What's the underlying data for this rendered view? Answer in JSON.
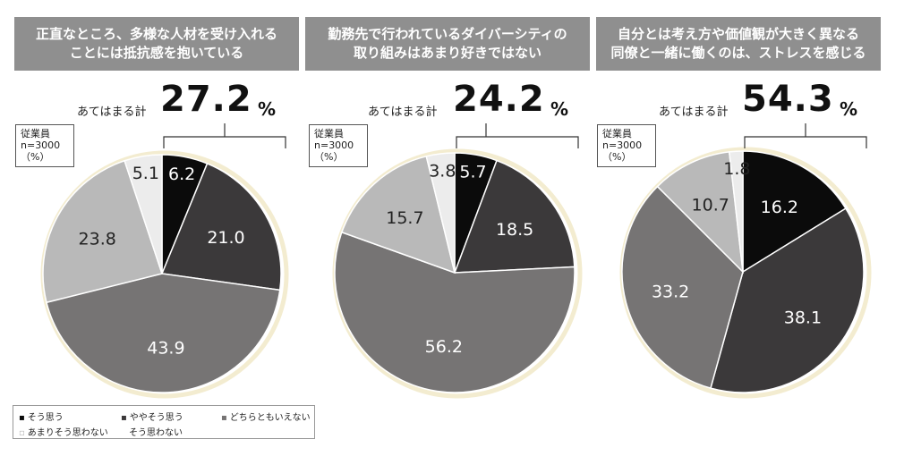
{
  "legend": [
    {
      "label": "そう思う",
      "color": "#0b0b0b"
    },
    {
      "label": "ややそう思う",
      "color": "#3b393a"
    },
    {
      "label": "どちらともいえない",
      "color": "#767474"
    },
    {
      "label": "あまりそう思わない",
      "color": "#b9b9b9"
    },
    {
      "label": "そう思わない",
      "color": "#ececec"
    }
  ],
  "sample": {
    "line1": "従業員",
    "line2": "n=3000",
    "line3": "（%）"
  },
  "chart_data": [
    {
      "type": "pie",
      "title_line1": "正直なところ、多様な人材を受け入れる",
      "title_line2": "ことには抵抗感を抱いている",
      "total_label": "あてはまる計",
      "total_value": "27.2",
      "total_unit": "%",
      "categories": [
        "そう思う",
        "ややそう思う",
        "どちらともいえない",
        "あまりそう思わない",
        "そう思わない"
      ],
      "values": [
        6.2,
        21.0,
        43.9,
        23.8,
        5.1
      ],
      "labels": [
        "6.2",
        "21.0",
        "43.9",
        "23.8",
        "5.1"
      ]
    },
    {
      "type": "pie",
      "title_line1": "勤務先で行われているダイバーシティの",
      "title_line2": "取り組みはあまり好きではない",
      "total_label": "あてはまる計",
      "total_value": "24.2",
      "total_unit": "%",
      "categories": [
        "そう思う",
        "ややそう思う",
        "どちらともいえない",
        "あまりそう思わない",
        "そう思わない"
      ],
      "values": [
        5.7,
        18.5,
        56.2,
        15.7,
        3.8
      ],
      "labels": [
        "5.7",
        "18.5",
        "56.2",
        "15.7",
        "3.8"
      ]
    },
    {
      "type": "pie",
      "title_line1": "自分とは考え方や価値観が大きく異なる",
      "title_line2": "同僚と一緒に働くのは、ストレスを感じる",
      "total_label": "あてはまる計",
      "total_value": "54.3",
      "total_unit": "%",
      "categories": [
        "そう思う",
        "ややそう思う",
        "どちらともいえない",
        "あまりそう思わない",
        "そう思わない"
      ],
      "values": [
        16.2,
        38.1,
        33.2,
        10.7,
        1.8
      ],
      "labels": [
        "16.2",
        "38.1",
        "33.2",
        "10.7",
        "1.8"
      ]
    }
  ]
}
